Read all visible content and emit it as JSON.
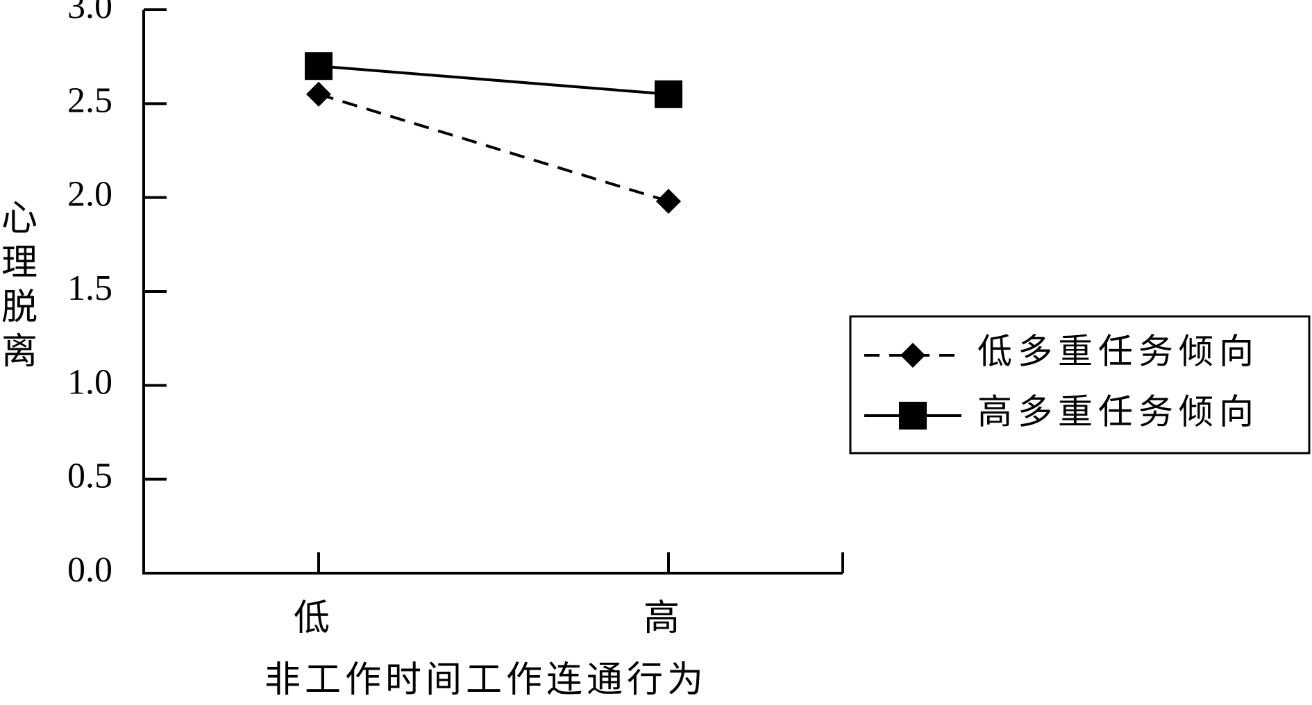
{
  "chart_data": {
    "type": "line",
    "title": null,
    "x_label": "非工作时间工作连通行为",
    "y_label": "心理脱离",
    "categories": [
      "低",
      "高"
    ],
    "series": [
      {
        "name": "低多重任务倾向",
        "color": "#000000",
        "dash": "dashed",
        "marker": "diamond",
        "values": [
          2.55,
          1.98
        ]
      },
      {
        "name": "高多重任务倾向",
        "color": "#000000",
        "dash": "solid",
        "marker": "square",
        "values": [
          2.7,
          2.55
        ]
      }
    ],
    "ylim": [
      0,
      3
    ],
    "yticks": [
      {
        "value": 0,
        "label": "0.0"
      },
      0.5,
      {
        "value": 1,
        "label": "1.0"
      },
      1.5,
      {
        "value": 2,
        "label": "2.0"
      },
      2.5,
      {
        "value": 3,
        "label": "3.0"
      }
    ],
    "grid": false,
    "legend": "right"
  }
}
